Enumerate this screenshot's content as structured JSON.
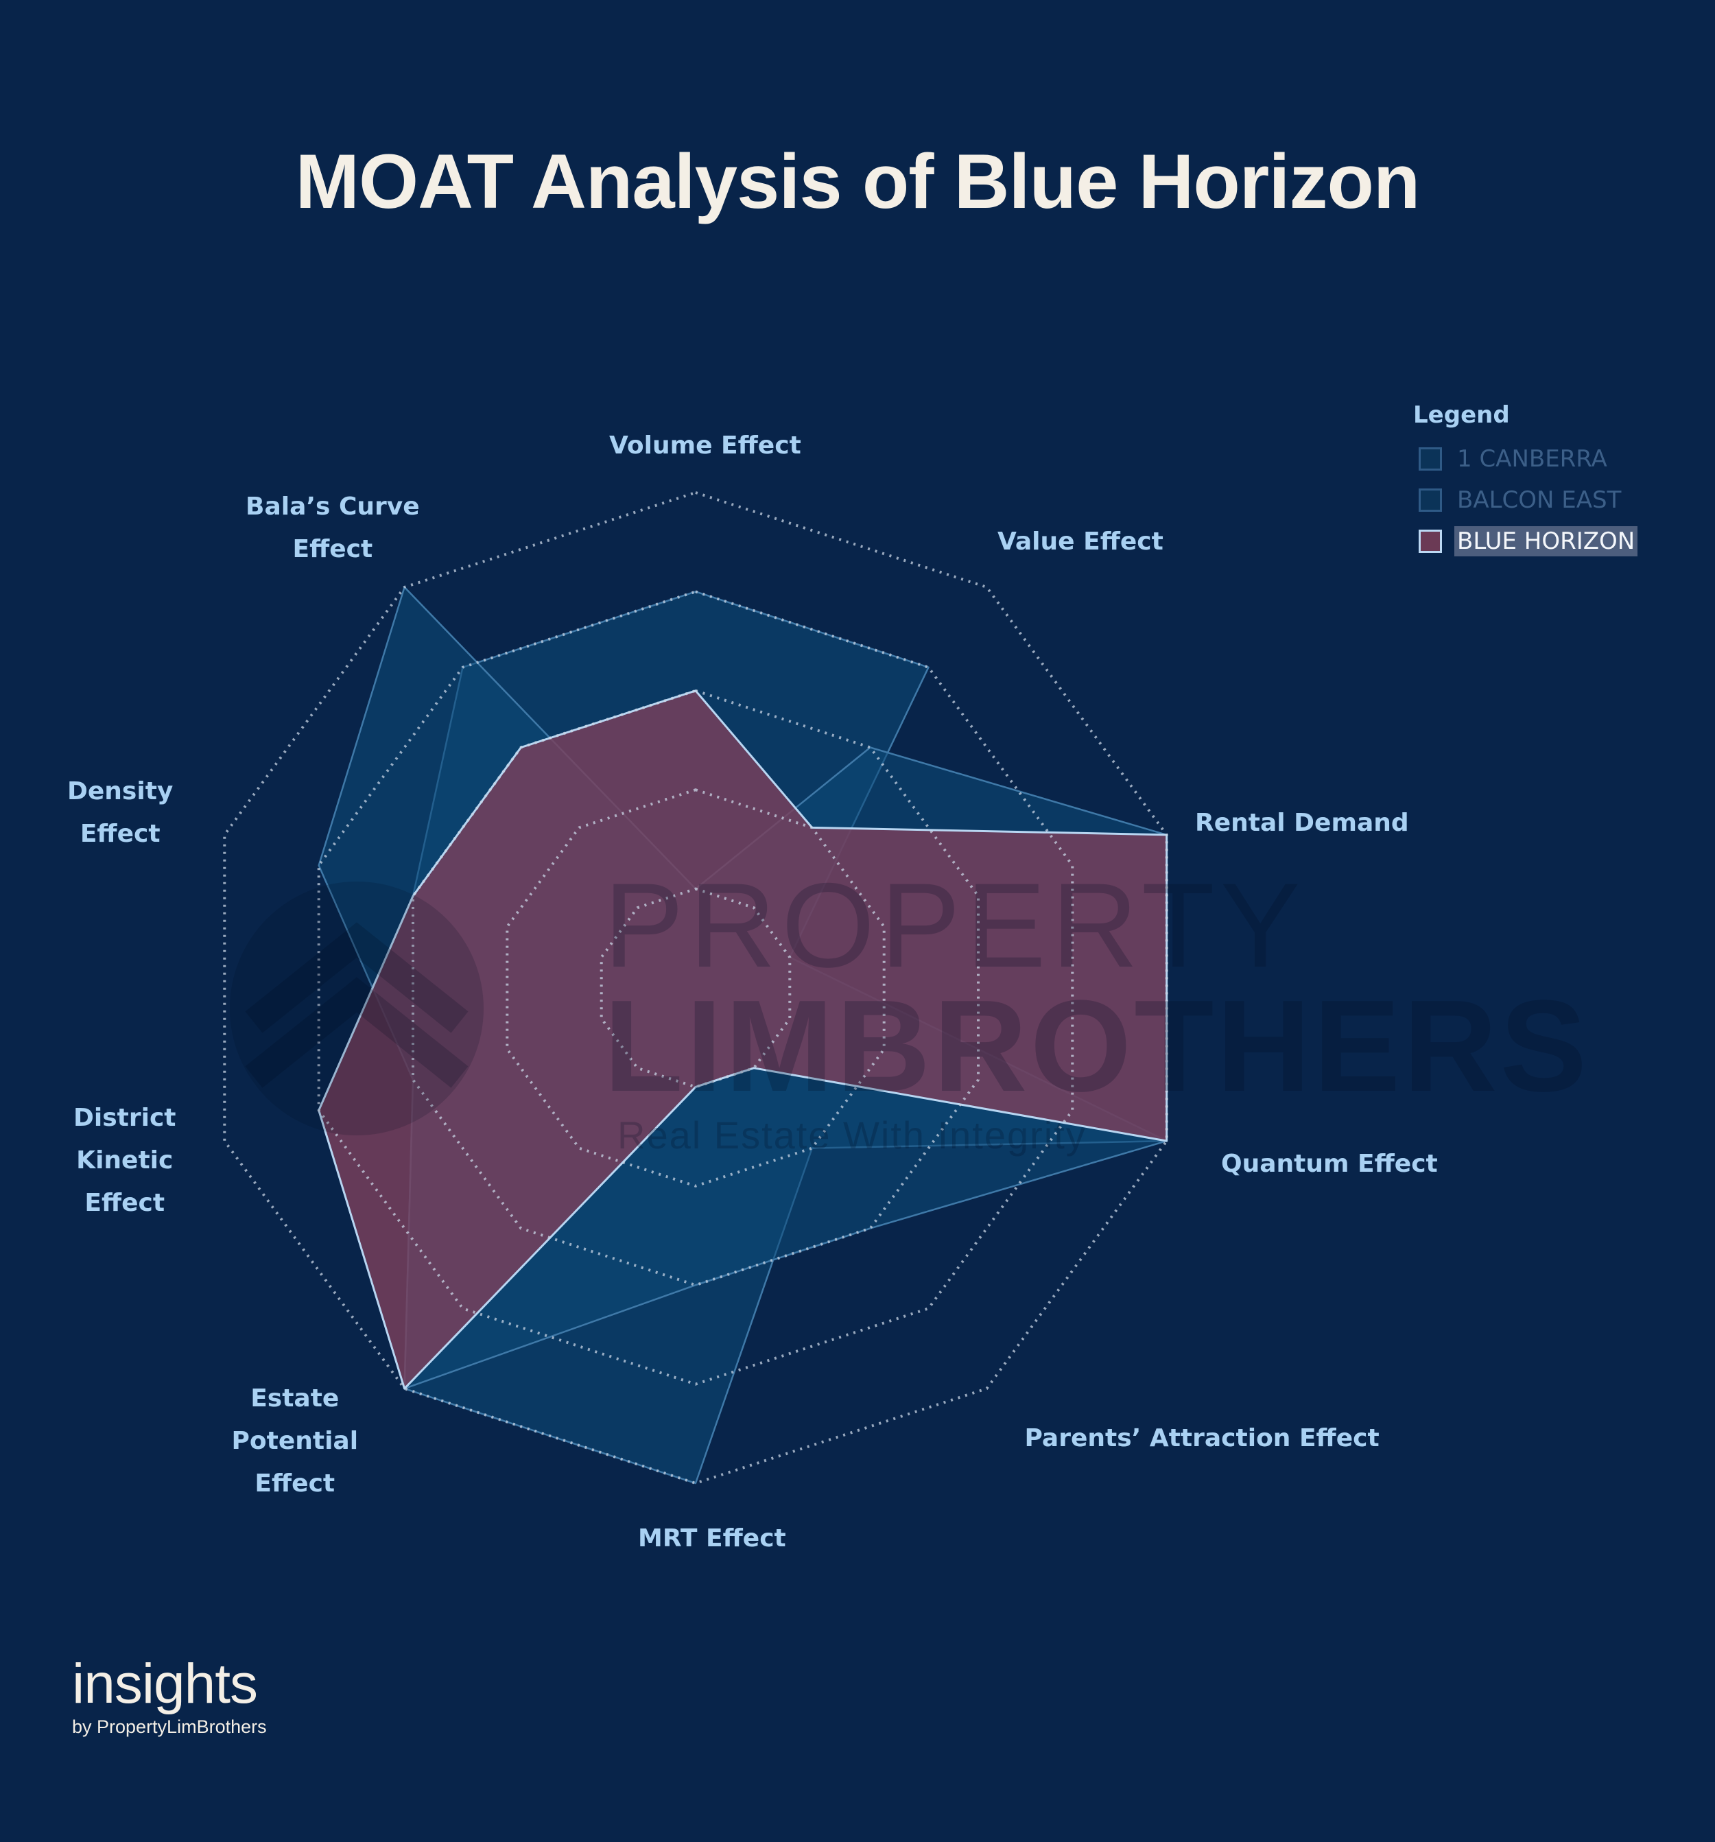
{
  "title": "MOAT Analysis of Blue Horizon",
  "legend": {
    "title": "Legend",
    "items": [
      {
        "label": "1 CANBERRA",
        "color": "#0b3358",
        "active": false
      },
      {
        "label": "BALCON EAST",
        "color": "#0b3358",
        "active": false
      },
      {
        "label": "BLUE HORIZON",
        "color": "#6b3a55",
        "active": true
      }
    ]
  },
  "watermark": {
    "line1": "PROPERTY",
    "line2": "LIMBROTHERS",
    "line3": "Real Estate With Integrity"
  },
  "brand": {
    "main": "insights",
    "sub": "by PropertyLimBrothers"
  },
  "axis_labels": [
    {
      "lines": [
        "Volume Effect"
      ]
    },
    {
      "lines": [
        "Value Effect"
      ]
    },
    {
      "lines": [
        "Rental Demand"
      ]
    },
    {
      "lines": [
        "Quantum Effect"
      ]
    },
    {
      "lines": [
        "Parents’ Attraction Effect"
      ]
    },
    {
      "lines": [
        "MRT Effect"
      ]
    },
    {
      "lines": [
        "Estate",
        "Potential",
        "Effect"
      ]
    },
    {
      "lines": [
        "District",
        "Kinetic",
        "Effect"
      ]
    },
    {
      "lines": [
        "Density",
        "Effect"
      ]
    },
    {
      "lines": [
        "Bala’s Curve",
        "Effect"
      ]
    }
  ],
  "colors": {
    "background": "#08244a",
    "title": "#f4efe6",
    "axis_label": "#a9d1f3",
    "grid": "#c9d6e6",
    "blue_series_fill": "#0c4a78",
    "blue_series_stroke": "#3f79a8",
    "highlight_fill": "#7a3f5c",
    "highlight_stroke": "#b8d6f2"
  },
  "chart_data": {
    "type": "radar",
    "title": "MOAT Analysis of Blue Horizon",
    "categories": [
      "Volume Effect",
      "Value Effect",
      "Rental Demand",
      "Quantum Effect",
      "Parents’ Attraction Effect",
      "MRT Effect",
      "Estate Potential Effect",
      "District Kinetic Effect",
      "Density Effect",
      "Bala’s Curve Effect"
    ],
    "series": [
      {
        "name": "1 CANBERRA",
        "values": [
          4,
          4,
          1,
          5,
          2,
          5,
          5,
          3,
          3,
          4
        ]
      },
      {
        "name": "BALCON EAST",
        "values": [
          1,
          3,
          5,
          5,
          3,
          3,
          5,
          3,
          4,
          5
        ]
      },
      {
        "name": "BLUE HORIZON",
        "values": [
          3,
          2,
          5,
          5,
          1,
          1,
          5,
          4,
          3,
          3
        ]
      }
    ],
    "highlighted_series": "BLUE HORIZON",
    "range": [
      0,
      5
    ],
    "grid_levels": 5,
    "grid_style": "dotted decagon",
    "legend_position": "top-right",
    "tick_labels_shown": false
  }
}
